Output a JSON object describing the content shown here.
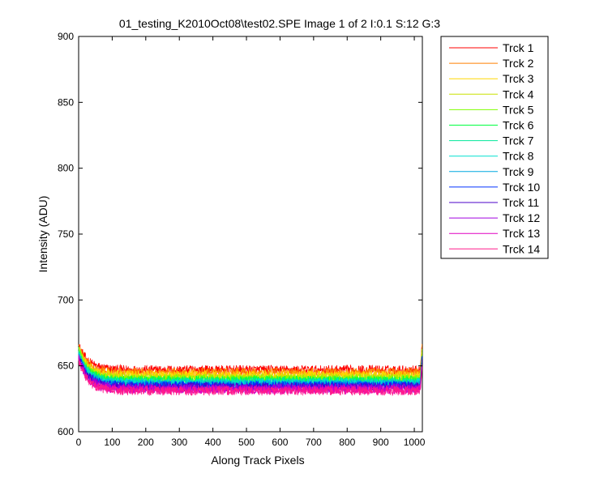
{
  "chart_data": {
    "type": "line",
    "title": "01_testing_K2010Oct08\\test02.SPE  Image 1 of 2  I:0.1  S:12  G:3",
    "xlabel": "Along Track Pixels",
    "ylabel": "Intensity (ADU)",
    "xlim": [
      0,
      1024
    ],
    "ylim": [
      600,
      900
    ],
    "xticks": [
      0,
      100,
      200,
      300,
      400,
      500,
      600,
      700,
      800,
      900,
      1000
    ],
    "yticks": [
      600,
      650,
      700,
      750,
      800,
      850,
      900
    ],
    "grid": false,
    "legend_position": "outside-top-right",
    "series": [
      {
        "name": "Trck 1",
        "color": "#ff0000",
        "start": 666,
        "plateau": 647
      },
      {
        "name": "Trck 2",
        "color": "#ff7f00",
        "start": 665,
        "plateau": 645
      },
      {
        "name": "Trck 3",
        "color": "#ffd700",
        "start": 664,
        "plateau": 643
      },
      {
        "name": "Trck 4",
        "color": "#c8e000",
        "start": 663,
        "plateau": 641
      },
      {
        "name": "Trck 5",
        "color": "#7fff00",
        "start": 662,
        "plateau": 640
      },
      {
        "name": "Trck 6",
        "color": "#00ff40",
        "start": 661,
        "plateau": 639
      },
      {
        "name": "Trck 7",
        "color": "#00e89a",
        "start": 660,
        "plateau": 638
      },
      {
        "name": "Trck 8",
        "color": "#00e0d0",
        "start": 659,
        "plateau": 637
      },
      {
        "name": "Trck 9",
        "color": "#00a8e0",
        "start": 658,
        "plateau": 636
      },
      {
        "name": "Trck 10",
        "color": "#0030ff",
        "start": 658,
        "plateau": 635
      },
      {
        "name": "Trck 11",
        "color": "#4b00c8",
        "start": 657,
        "plateau": 634
      },
      {
        "name": "Trck 12",
        "color": "#a000e0",
        "start": 656,
        "plateau": 633
      },
      {
        "name": "Trck 13",
        "color": "#e000c0",
        "start": 655,
        "plateau": 632
      },
      {
        "name": "Trck 14",
        "color": "#ff1a8c",
        "start": 654,
        "plateau": 631
      }
    ]
  }
}
